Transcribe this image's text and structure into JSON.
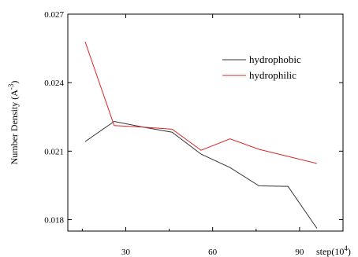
{
  "chart_data": {
    "type": "line",
    "title": "",
    "xlabel": "step(10",
    "xlabel_sup": "4",
    "xlabel_close": ")",
    "ylabel": "Number Density (A",
    "ylabel_sup": "-3",
    "ylabel_close": ")",
    "xlim": [
      10,
      105
    ],
    "ylim": [
      0.0175,
      0.027
    ],
    "xticks": [
      30,
      60,
      90
    ],
    "xtick_labels": [
      "30",
      "60",
      "90"
    ],
    "yticks": [
      0.018,
      0.021,
      0.024,
      0.027
    ],
    "ytick_labels": [
      "0.018",
      "0.021",
      "0.024",
      "0.027"
    ],
    "grid": false,
    "legend_position": "top-right",
    "series": [
      {
        "name": "hydrophobic",
        "color": "#333333",
        "x": [
          16,
          26,
          36,
          46,
          56,
          66,
          76,
          86,
          96
        ],
        "y": [
          0.02142,
          0.0223,
          0.02205,
          0.02183,
          0.02087,
          0.02028,
          0.01948,
          0.01946,
          0.01762
        ]
      },
      {
        "name": "hydrophilic",
        "color": "#d62728",
        "x": [
          16,
          26,
          36,
          46,
          56,
          66,
          76,
          86,
          96
        ],
        "y": [
          0.02579,
          0.02212,
          0.02205,
          0.02196,
          0.02104,
          0.02154,
          0.02108,
          0.02077,
          0.02046
        ]
      }
    ]
  }
}
